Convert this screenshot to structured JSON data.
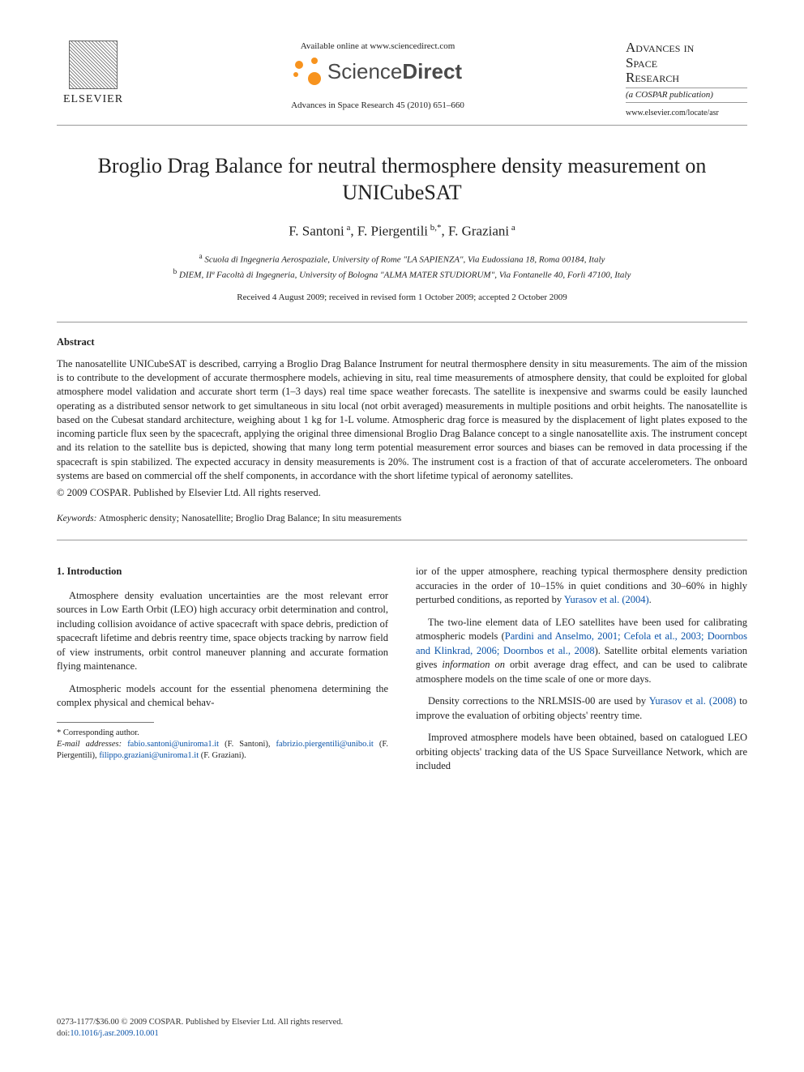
{
  "header": {
    "publisher_left": "ELSEVIER",
    "available_text": "Available online at www.sciencedirect.com",
    "sd_word_light": "Science",
    "sd_word_bold": "Direct",
    "journal_citation": "Advances in Space Research 45 (2010) 651–660",
    "journal_name_line1": "Advances in",
    "journal_name_line2": "Space",
    "journal_name_line3": "Research",
    "journal_tagline": "(a COSPAR publication)",
    "journal_url": "www.elsevier.com/locate/asr"
  },
  "article": {
    "title": "Broglio Drag Balance for neutral thermosphere density measurement on UNICubeSAT",
    "authors_html": "F. Santoni <sup>a</sup>, F. Piergentili <sup>b,*</sup>, F. Graziani <sup>a</sup>",
    "affiliations": [
      "a Scuola di Ingegneria Aerospaziale, University of Rome \"LA SAPIENZA\", Via Eudossiana 18, Roma 00184, Italy",
      "b DIEM, IIª Facoltà di Ingegneria, University of Bologna \"ALMA MATER STUDIORUM\", Via Fontanelle 40, Forlì 47100, Italy"
    ],
    "dates": "Received 4 August 2009; received in revised form 1 October 2009; accepted 2 October 2009"
  },
  "abstract": {
    "heading": "Abstract",
    "text": "The nanosatellite UNICubeSAT is described, carrying a Broglio Drag Balance Instrument for neutral thermosphere density in situ measurements. The aim of the mission is to contribute to the development of accurate thermosphere models, achieving in situ, real time measurements of atmosphere density, that could be exploited for global atmosphere model validation and accurate short term (1–3 days) real time space weather forecasts. The satellite is inexpensive and swarms could be easily launched operating as a distributed sensor network to get simultaneous in situ local (not orbit averaged) measurements in multiple positions and orbit heights. The nanosatellite is based on the Cubesat standard architecture, weighing about 1 kg for 1-L volume. Atmospheric drag force is measured by the displacement of light plates exposed to the incoming particle flux seen by the spacecraft, applying the original three dimensional Broglio Drag Balance concept to a single nanosatellite axis. The instrument concept and its relation to the satellite bus is depicted, showing that many long term potential measurement error sources and biases can be removed in data processing if the spacecraft is spin stabilized. The expected accuracy in density measurements is 20%. The instrument cost is a fraction of that of accurate accelerometers. The onboard systems are based on commercial off the shelf components, in accordance with the short lifetime typical of aeronomy satellites.",
    "copyright": "© 2009 COSPAR. Published by Elsevier Ltd. All rights reserved."
  },
  "keywords": {
    "label": "Keywords:",
    "values": "Atmospheric density; Nanosatellite; Broglio Drag Balance; In situ measurements"
  },
  "body": {
    "section_heading": "1. Introduction",
    "left_paragraphs": [
      "Atmosphere density evaluation uncertainties are the most relevant error sources in Low Earth Orbit (LEO) high accuracy orbit determination and control, including collision avoidance of active spacecraft with space debris, prediction of spacecraft lifetime and debris reentry time, space objects tracking by narrow field of view instruments, orbit control maneuver planning and accurate formation flying maintenance.",
      "Atmospheric models account for the essential phenomena determining the complex physical and chemical behav-"
    ],
    "right_p1_pre": "ior of the upper atmosphere, reaching typical thermosphere density prediction accuracies in the order of 10–15% in quiet conditions and 30–60% in highly perturbed conditions, as reported by ",
    "right_p1_link": "Yurasov et al. (2004)",
    "right_p1_post": ".",
    "right_p2_pre": "The two-line element data of LEO satellites have been used for calibrating atmospheric models (",
    "right_p2_link": "Pardini and Anselmo, 2001; Cefola et al., 2003; Doornbos and Klinkrad, 2006; Doornbos et al., 2008",
    "right_p2_post": "). Satellite orbital elements variation gives ",
    "right_p2_ital": "information on",
    "right_p2_tail": " orbit average drag effect, and can be used to calibrate atmosphere models on the time scale of one or more days.",
    "right_p3_pre": "Density corrections to the NRLMSIS-00 are used by ",
    "right_p3_link": "Yurasov et al. (2008)",
    "right_p3_post": " to improve the evaluation of orbiting objects' reentry time.",
    "right_p4": "Improved atmosphere models have been obtained, based on catalogued LEO orbiting objects' tracking data of the US Space Surveillance Network, which are included"
  },
  "footnotes": {
    "corr": "* Corresponding author.",
    "emails_label": "E-mail addresses:",
    "e1": "fabio.santoni@uniroma1.it",
    "n1": " (F. Santoni), ",
    "e2": "fabrizio.piergentili@unibo.it",
    "n2": " (F. Piergentili), ",
    "e3": "filippo.graziani@uniroma1.it",
    "n3": " (F. Graziani)."
  },
  "bottom": {
    "issn": "0273-1177/$36.00 © 2009 COSPAR. Published by Elsevier Ltd. All rights reserved.",
    "doi_label": "doi:",
    "doi": "10.1016/j.asr.2009.10.001"
  }
}
